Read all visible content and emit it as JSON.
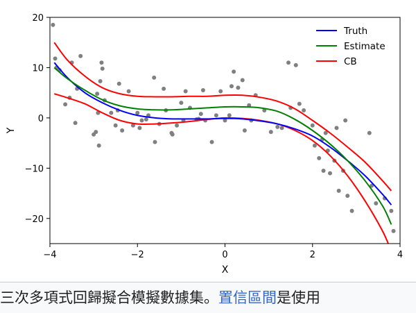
{
  "chart_data": {
    "type": "scatter",
    "xlabel": "X",
    "ylabel": "Y",
    "xlim": [
      -4,
      4
    ],
    "ylim": [
      -25,
      20
    ],
    "xticks": [
      -4,
      -2,
      0,
      2,
      4
    ],
    "yticks": [
      -20,
      -10,
      0,
      10,
      20
    ],
    "xtick_labels": [
      "−4",
      "−2",
      "0",
      "2",
      "4"
    ],
    "ytick_labels": [
      "−20",
      "−10",
      "0",
      "10",
      "20"
    ],
    "grid": false,
    "legend_position": "top-right",
    "points": {
      "color": "#808080",
      "x": [
        -3.93,
        -3.88,
        -3.85,
        -3.78,
        -3.65,
        -3.55,
        -3.5,
        -3.42,
        -3.38,
        -3.3,
        -3.0,
        -2.95,
        -2.92,
        -2.9,
        -2.88,
        -2.85,
        -2.82,
        -2.8,
        -2.75,
        -2.6,
        -2.5,
        -2.45,
        -2.42,
        -2.35,
        -2.2,
        -2.1,
        -2.0,
        -1.95,
        -1.9,
        -1.8,
        -1.75,
        -1.62,
        -1.6,
        -1.5,
        -1.4,
        -1.35,
        -1.22,
        -1.2,
        -1.1,
        -1.0,
        -0.95,
        -0.9,
        -0.8,
        -0.65,
        -0.6,
        -0.55,
        -0.5,
        -0.45,
        -0.3,
        -0.2,
        -0.1,
        0.0,
        0.1,
        0.15,
        0.2,
        0.3,
        0.4,
        0.45,
        0.55,
        0.6,
        0.7,
        0.9,
        1.05,
        1.2,
        1.3,
        1.45,
        1.5,
        1.62,
        1.7,
        1.8,
        2.0,
        2.05,
        2.15,
        2.22,
        2.25,
        2.3,
        2.35,
        2.4,
        2.5,
        2.55,
        2.6,
        2.7,
        2.75,
        2.8,
        2.9,
        3.3,
        3.35,
        3.45,
        3.65,
        3.8,
        3.85
      ],
      "y": [
        18.5,
        11.8,
        10.0,
        9.5,
        2.7,
        4.0,
        11.0,
        -1.0,
        5.8,
        12.3,
        -3.3,
        -2.8,
        4.8,
        1.0,
        -5.5,
        7.3,
        11.0,
        9.8,
        3.5,
        1.0,
        -1.5,
        1.5,
        6.8,
        -2.5,
        5.3,
        -1.5,
        1.0,
        -2.0,
        -0.5,
        -0.3,
        0.5,
        8.0,
        -4.8,
        -1.2,
        5.8,
        1.5,
        -3.0,
        -3.3,
        -1.5,
        3.0,
        -0.5,
        5.3,
        2.0,
        -0.3,
        -0.2,
        0.8,
        5.5,
        -0.5,
        -4.8,
        0.5,
        5.3,
        -0.5,
        0.5,
        6.3,
        9.2,
        6.0,
        7.5,
        -2.5,
        2.5,
        -0.5,
        4.5,
        1.5,
        -2.8,
        -1.8,
        -2.0,
        11.0,
        2.0,
        10.5,
        2.8,
        1.5,
        -1.5,
        -5.5,
        -8.0,
        -4.3,
        -10.5,
        -3.0,
        -6.5,
        -11.0,
        -8.5,
        -2.0,
        -14.5,
        -10.5,
        -0.5,
        -15.5,
        -18.5,
        -3.0,
        -13.5,
        -17.0,
        -16.0,
        -18.5,
        -22.5
      ]
    },
    "series": [
      {
        "name": "Truth",
        "color": "#0000ff",
        "x": [
          -3.9,
          -3.6,
          -3.2,
          -2.8,
          -2.4,
          -2.0,
          -1.6,
          -1.2,
          -0.8,
          -0.4,
          0.0,
          0.4,
          0.8,
          1.2,
          1.6,
          2.0,
          2.4,
          2.8,
          3.2,
          3.6,
          3.8
        ],
        "y": [
          11.0,
          8.0,
          5.0,
          3.0,
          1.5,
          0.5,
          0.0,
          -0.2,
          -0.2,
          -0.2,
          -0.1,
          -0.2,
          -0.6,
          -1.2,
          -2.2,
          -3.6,
          -5.8,
          -8.5,
          -11.5,
          -15.2,
          -17.3
        ]
      },
      {
        "name": "Estimate",
        "color": "#008000",
        "x": [
          -3.9,
          -3.6,
          -3.2,
          -2.8,
          -2.4,
          -2.0,
          -1.6,
          -1.2,
          -0.8,
          -0.4,
          0.0,
          0.4,
          0.8,
          1.2,
          1.6,
          2.0,
          2.4,
          2.8,
          3.2,
          3.6,
          3.8
        ],
        "y": [
          10.0,
          7.8,
          5.5,
          3.6,
          2.4,
          1.8,
          1.6,
          1.6,
          1.8,
          2.0,
          2.2,
          2.2,
          2.0,
          1.3,
          -0.3,
          -2.5,
          -5.2,
          -8.5,
          -12.5,
          -17.5,
          -21.2
        ]
      },
      {
        "name": "CB",
        "color": "#ff0000",
        "x": [
          -3.9,
          -3.6,
          -3.2,
          -2.8,
          -2.4,
          -2.0,
          -1.6,
          -1.2,
          -0.8,
          -0.4,
          0.0,
          0.4,
          0.8,
          1.2,
          1.6,
          2.0,
          2.4,
          2.8,
          3.2,
          3.6,
          3.8
        ],
        "y": [
          15.0,
          11.5,
          8.3,
          6.0,
          4.8,
          4.3,
          4.2,
          4.2,
          4.3,
          4.3,
          4.5,
          4.5,
          4.1,
          3.3,
          1.8,
          -0.5,
          -3.0,
          -5.8,
          -8.8,
          -12.5,
          -14.5
        ]
      },
      {
        "x": [
          -3.9,
          -3.6,
          -3.2,
          -2.8,
          -2.4,
          -2.0,
          -1.6,
          -1.2,
          -0.8,
          -0.4,
          0.0,
          0.4,
          0.8,
          1.2,
          1.6,
          2.0,
          2.4,
          2.8,
          3.2,
          3.6,
          3.8
        ],
        "y": [
          4.8,
          4.0,
          2.8,
          1.0,
          -0.5,
          -1.2,
          -1.2,
          -1.0,
          -0.7,
          -0.3,
          0.0,
          -0.1,
          -0.5,
          -1.2,
          -2.5,
          -4.5,
          -7.5,
          -11.5,
          -16.5,
          -22.5,
          -26.5
        ],
        "color": "#ff0000"
      }
    ]
  },
  "caption": {
    "text_before": "三次多項式回歸擬合模擬數據集。",
    "link_text": "置信區間",
    "text_after": "是使用"
  }
}
